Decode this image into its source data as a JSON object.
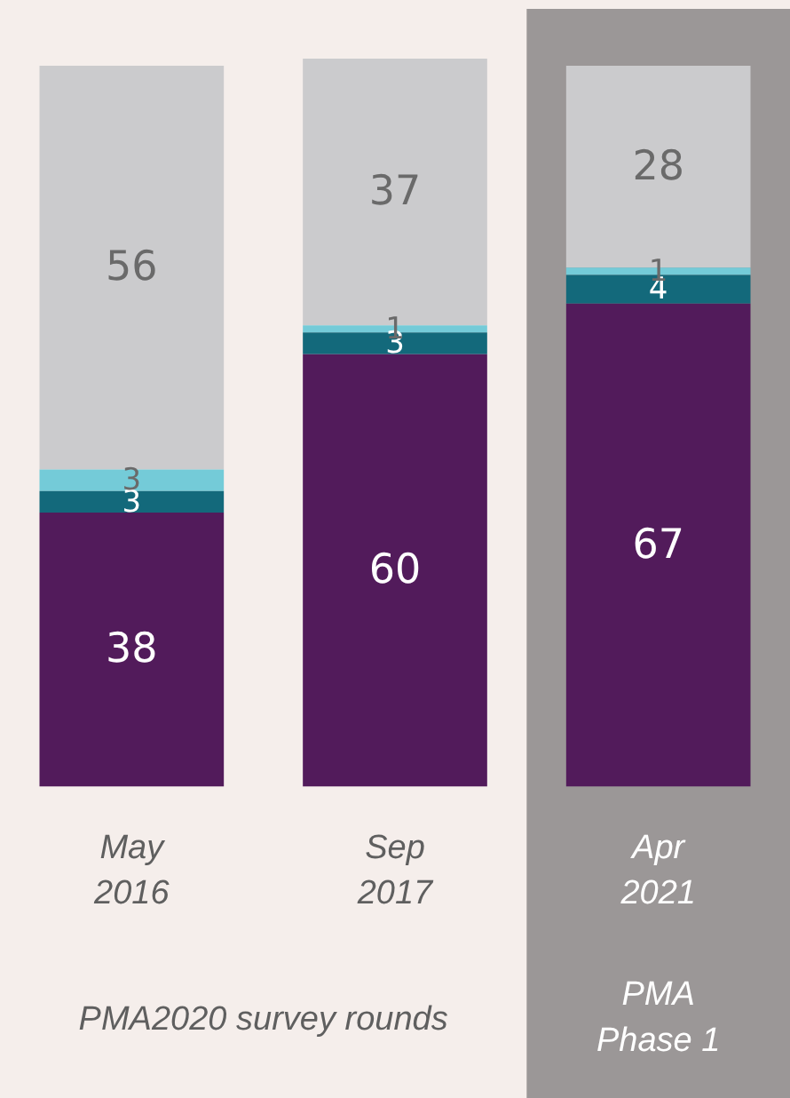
{
  "chart_data": {
    "type": "bar",
    "stacked": true,
    "categories": [
      "May 2016",
      "Sep 2017",
      "Apr 2021"
    ],
    "series": [
      {
        "color": "#521b5b",
        "values": [
          38,
          60,
          67
        ]
      },
      {
        "color": "#13697b",
        "values": [
          3,
          3,
          4
        ]
      },
      {
        "color": "#74cbd8",
        "values": [
          3,
          1,
          1
        ]
      },
      {
        "color": "#cbcbcd",
        "values": [
          56,
          37,
          28
        ]
      }
    ],
    "data_labels": true,
    "grid": false,
    "legend": false,
    "bands": [
      {
        "axis": "x",
        "from": "Apr 2021",
        "to": "Apr 2021",
        "label": "PMA Phase 1",
        "color": "#9b9797"
      }
    ],
    "annotations": [
      "PMA2020 survey rounds"
    ]
  }
}
